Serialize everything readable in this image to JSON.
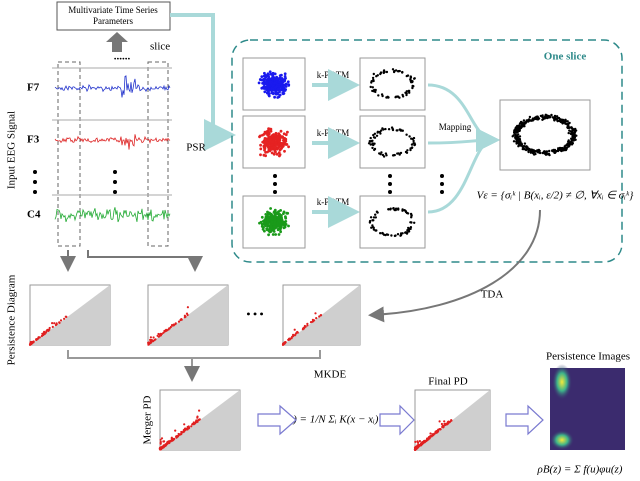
{
  "params_box": [
    "Multivariate Time Series",
    "Parameters"
  ],
  "params_dots": "......",
  "signal": {
    "title": "Input EEG Signal",
    "channels": [
      "F7",
      "F3",
      "C4"
    ],
    "slice_label": "slice"
  },
  "psr": "PSR",
  "one_slice": {
    "title": "One slice",
    "methods": [
      "k-PDTM",
      "k-PDTM",
      "k-PDTM"
    ],
    "mapping": "Mapping",
    "formula": "Vε = {σᵢᵏ | B(xᵢ, ε/2) ≠ ∅, ∀xᵢ ∈ σᵢᵏ}"
  },
  "tda": "TDA",
  "persistence_diagram": "Persistence Diagram",
  "pd_dots": "• • •",
  "merger": "Merger PD",
  "mkde": {
    "title": "MKDE",
    "formula": "f(x) = 1/N Σᵢ K(x − xᵢ)"
  },
  "final": "Final PD",
  "images": {
    "title": "Persistence Images",
    "formula": "ρB(z) = Σ f(u)φu(z)"
  }
}
